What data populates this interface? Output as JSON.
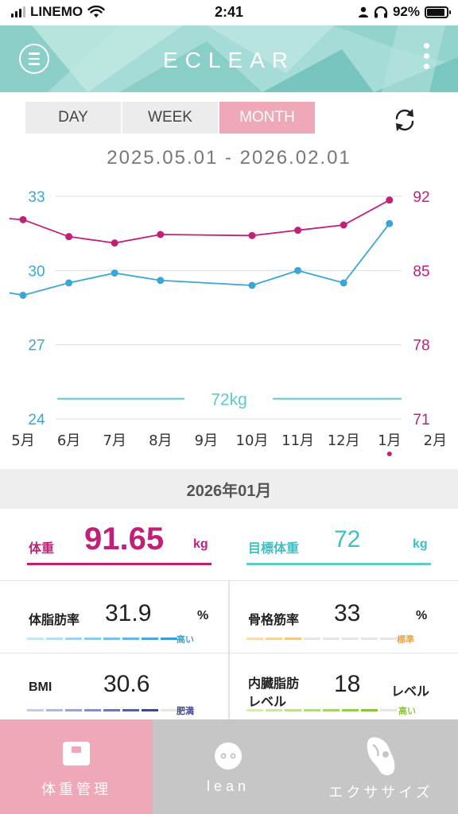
{
  "status_bar": {
    "carrier": "LINEMO",
    "time": "2:41",
    "battery": "92%",
    "battery_level": 0.92
  },
  "header": {
    "logo": "ECLEAR",
    "menu_icon": "menu-circle-icon",
    "more_icon": "kebab-icon"
  },
  "tabs": [
    {
      "label": "DAY",
      "active": false
    },
    {
      "label": "WEEK",
      "active": false
    },
    {
      "label": "MONTH",
      "active": true
    }
  ],
  "date_range": "2025.05.01 - 2026.02.01",
  "colors": {
    "weight": "#c21f78",
    "fat": "#3aa6d6",
    "target": "#5fc9cc",
    "accent_pink": "#eea8b8"
  },
  "chart_data": {
    "type": "line",
    "categories": [
      "5月",
      "6月",
      "7月",
      "8月",
      "9月",
      "10月",
      "11月",
      "12月",
      "1月",
      "2月"
    ],
    "left_axis": {
      "ticks": [
        "33",
        "30",
        "27",
        "24"
      ],
      "range": [
        24,
        33
      ]
    },
    "right_axis": {
      "ticks": [
        "92",
        "85",
        "78",
        "71"
      ],
      "range": [
        71,
        92
      ]
    },
    "series": [
      {
        "name": "体重",
        "axis": "right",
        "points": [
          [
            -0.3,
            89.9
          ],
          [
            0,
            89.8
          ],
          [
            1,
            88.2
          ],
          [
            2,
            87.6
          ],
          [
            3,
            88.4
          ],
          [
            5,
            88.3
          ],
          [
            6,
            88.8
          ],
          [
            7,
            89.3
          ],
          [
            8,
            91.65
          ]
        ]
      },
      {
        "name": "体脂肪率",
        "axis": "left",
        "points": [
          [
            -0.3,
            29.1
          ],
          [
            0,
            29.0
          ],
          [
            1,
            29.5
          ],
          [
            2,
            29.9
          ],
          [
            3,
            29.6
          ],
          [
            5,
            29.4
          ],
          [
            6,
            30.0
          ],
          [
            7,
            29.5
          ],
          [
            8,
            31.9
          ]
        ]
      }
    ],
    "target_line": {
      "value": 72,
      "label": "72kg",
      "axis": "right"
    },
    "highlight_category": "1月"
  },
  "month_label": "2026年01月",
  "stats": {
    "weight": {
      "label": "体重",
      "value": "91.65",
      "unit": "kg"
    },
    "target": {
      "label": "目標体重",
      "value": "72",
      "unit": "kg"
    },
    "fat": {
      "label": "体脂肪率",
      "value": "31.9",
      "unit": "%",
      "level": "高い"
    },
    "muscle": {
      "label": "骨格筋率",
      "value": "33",
      "unit": "%",
      "level": "標準"
    },
    "bmi": {
      "label": "BMI",
      "value": "30.6",
      "level": "肥満"
    },
    "visceral": {
      "label1": "内臓脂肪",
      "label2": "レベル",
      "value": "18",
      "unit": "レベル",
      "level": "高い"
    }
  },
  "bottom_nav": [
    {
      "label": "体重管理",
      "icon": "scale-icon",
      "active": true
    },
    {
      "label": "lean",
      "icon": "lean-face-icon",
      "active": false
    },
    {
      "label": "エクササイズ",
      "icon": "exercise-hand-icon",
      "active": false
    }
  ]
}
